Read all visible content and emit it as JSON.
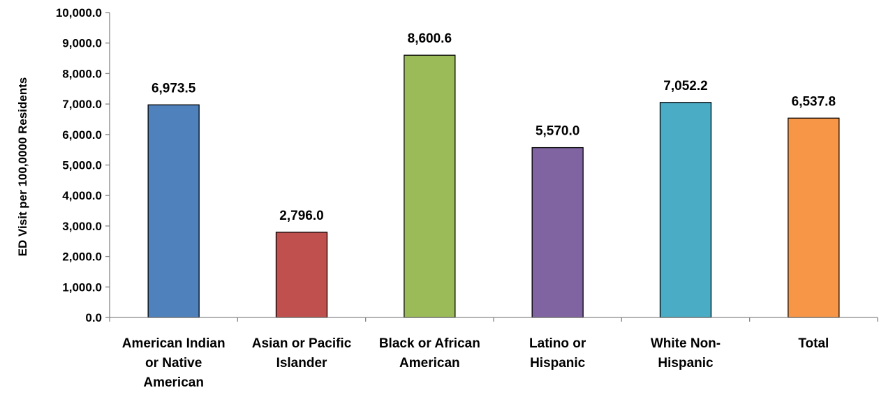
{
  "chart_data": {
    "type": "bar",
    "title": "",
    "xlabel": "",
    "ylabel": "ED Visit per 100,0000 Residents",
    "ylim": [
      0,
      10000
    ],
    "yticks": [
      0,
      1000,
      2000,
      3000,
      4000,
      5000,
      6000,
      7000,
      8000,
      9000,
      10000
    ],
    "ytick_labels": [
      "0.0",
      "1,000.0",
      "2,000.0",
      "3,000.0",
      "4,000.0",
      "5,000.0",
      "6,000.0",
      "7,000.0",
      "8,000.0",
      "9,000.0",
      "10,000.0"
    ],
    "categories": [
      "American Indian or Native American",
      "Asian or Pacific Islander",
      "Black or African American",
      "Latino or Hispanic",
      "White Non-Hispanic",
      "Total"
    ],
    "category_label_lines": [
      [
        "American Indian",
        "or Native",
        "American"
      ],
      [
        "Asian or Pacific",
        "Islander"
      ],
      [
        "Black or African",
        "American"
      ],
      [
        "Latino or",
        "Hispanic"
      ],
      [
        "White Non-",
        "Hispanic"
      ],
      [
        "Total"
      ]
    ],
    "values": [
      6973.5,
      2796.0,
      8600.6,
      5570.0,
      7052.2,
      6537.8
    ],
    "value_labels": [
      "6,973.5",
      "2,796.0",
      "8,600.6",
      "5,570.0",
      "7,052.2",
      "6,537.8"
    ],
    "colors": [
      "#4F81BD",
      "#C0504D",
      "#9BBB59",
      "#8064A2",
      "#4BACC6",
      "#F79646"
    ],
    "grid": false,
    "legend": "none"
  }
}
